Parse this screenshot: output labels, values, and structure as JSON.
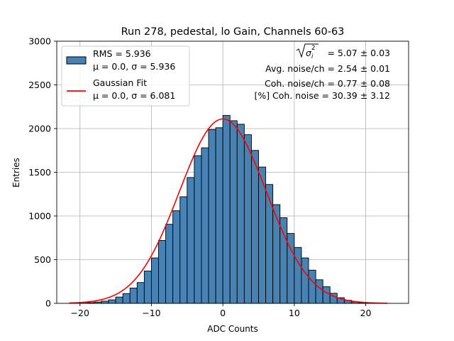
{
  "chart_data": {
    "type": "bar",
    "title": "Run 278, pedestal, lo Gain, Channels 60-63",
    "xlabel": "ADC Counts",
    "ylabel": "Entries",
    "xlim": [
      -23.25,
      26.0
    ],
    "ylim": [
      0,
      3000
    ],
    "xticks": [
      -20,
      -10,
      0,
      10,
      20
    ],
    "xtick_labels": [
      "−20",
      "−10",
      "0",
      "10",
      "20"
    ],
    "yticks": [
      0,
      500,
      1000,
      1500,
      2000,
      2500,
      3000
    ],
    "ytick_labels": [
      "0",
      "500",
      "1000",
      "1500",
      "2000",
      "2500",
      "3000"
    ],
    "grid": true,
    "histogram": {
      "name": "RMS = 5.936",
      "bin_width": 1,
      "bin_starts": [
        -20,
        -19,
        -18,
        -17,
        -16,
        -15,
        -14,
        -13,
        -12,
        -11,
        -10,
        -9,
        -8,
        -7,
        -6,
        -5,
        -4,
        -3,
        -2,
        -1,
        0,
        1,
        2,
        3,
        4,
        5,
        6,
        7,
        8,
        9,
        10,
        11,
        12,
        13,
        14,
        15,
        16,
        17,
        18,
        19,
        20,
        21,
        22
      ],
      "values": [
        3,
        8,
        15,
        25,
        40,
        72,
        112,
        175,
        238,
        370,
        520,
        720,
        905,
        1060,
        1220,
        1440,
        1690,
        1780,
        1990,
        2010,
        2150,
        2090,
        2050,
        1930,
        1750,
        1560,
        1360,
        1130,
        980,
        800,
        640,
        520,
        380,
        270,
        190,
        115,
        65,
        35,
        18,
        8,
        4,
        2,
        1
      ],
      "color": "#4682b4",
      "edge_color": "#000000"
    },
    "fit_curve": {
      "name": "Gaussian Fit",
      "mu": 0.0,
      "sigma": 6.081,
      "amplitude": 2110,
      "x_range": [
        -21.5,
        23
      ],
      "color": "#ff0000"
    },
    "legend": {
      "placement": "top-left",
      "entries": [
        {
          "line1": "RMS = 5.936",
          "line2": "μ = 0.0, σ = 5.936",
          "kind": "patch"
        },
        {
          "line1": "Gaussian Fit",
          "line2": "μ = 0.0, σ = 6.081",
          "kind": "line"
        }
      ]
    },
    "annotations": {
      "total_noise_value": "= 5.07 ± 0.03",
      "avg_noise": "Avg. noise/ch = 2.54 ± 0.01",
      "coh_noise": "Coh. noise/ch = 0.77 ± 0.08",
      "coh_noise_pct": "[%] Coh. noise = 30.39 ± 3.12"
    }
  }
}
